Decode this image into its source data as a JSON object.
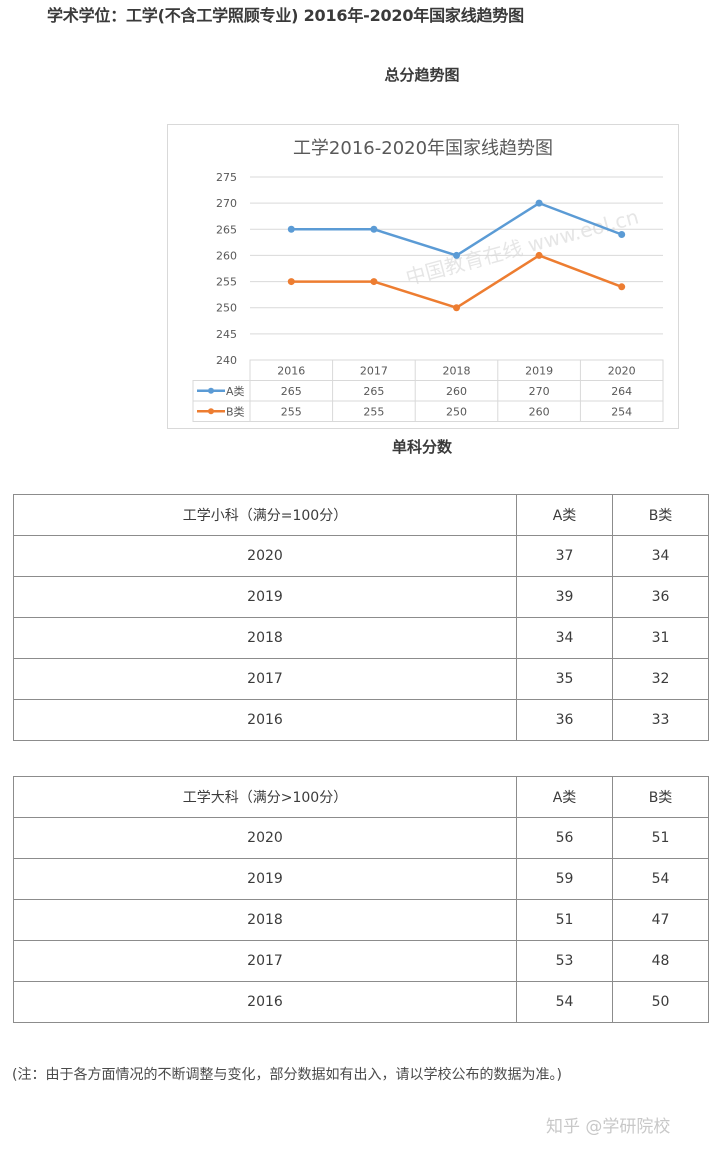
{
  "page": {
    "title": "学术学位：工学(不含工学照顾专业) 2016年-2020年国家线趋势图",
    "total_section_title": "总分趋势图",
    "single_section_title": "单科分数",
    "note": "(注：由于各方面情况的不断调整与变化，部分数据如有出入，请以学校公布的数据为准。)",
    "watermark": "知乎 @学研院校",
    "chart_watermark": "中国教育在线 www.eol.cn"
  },
  "colors": {
    "series_a": "#5b9bd5",
    "series_b": "#ed7d31",
    "gridline": "#d9d9d9",
    "table_border": "#8c8c8c"
  },
  "chart_data": {
    "type": "line",
    "title": "工学2016-2020年国家线趋势图",
    "categories": [
      "2016",
      "2017",
      "2018",
      "2019",
      "2020"
    ],
    "series": [
      {
        "name": "A类",
        "values": [
          265,
          265,
          260,
          270,
          264
        ],
        "color": "#5b9bd5"
      },
      {
        "name": "B类",
        "values": [
          255,
          255,
          250,
          260,
          254
        ],
        "color": "#ed7d31"
      }
    ],
    "xlabel": "",
    "ylabel": "",
    "ylim": [
      240,
      275
    ],
    "yticks": [
      275,
      270,
      265,
      260,
      255,
      250,
      245,
      240
    ],
    "grid": true,
    "legend_position": "data-table",
    "data_table": true
  },
  "small_subjects_table": {
    "header": [
      "工学小科（满分=100分）",
      "A类",
      "B类"
    ],
    "rows": [
      [
        "2020",
        "37",
        "34"
      ],
      [
        "2019",
        "39",
        "36"
      ],
      [
        "2018",
        "34",
        "31"
      ],
      [
        "2017",
        "35",
        "32"
      ],
      [
        "2016",
        "36",
        "33"
      ]
    ]
  },
  "large_subjects_table": {
    "header": [
      "工学大科（满分>100分）",
      "A类",
      "B类"
    ],
    "rows": [
      [
        "2020",
        "56",
        "51"
      ],
      [
        "2019",
        "59",
        "54"
      ],
      [
        "2018",
        "51",
        "47"
      ],
      [
        "2017",
        "53",
        "48"
      ],
      [
        "2016",
        "54",
        "50"
      ]
    ]
  }
}
